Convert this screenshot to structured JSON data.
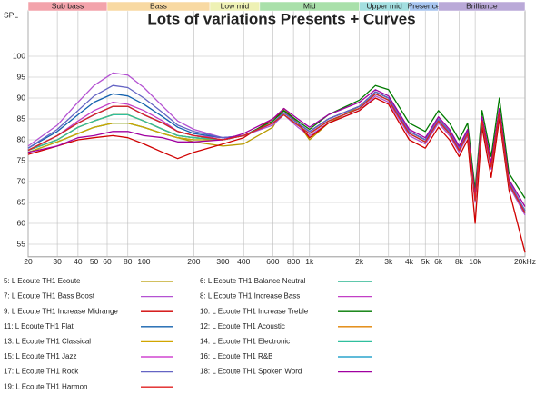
{
  "chart_data": {
    "type": "line",
    "title": "Lots of variations Presents + Curves",
    "y_label": "SPL",
    "log_x": true,
    "grid": true,
    "xlim": [
      20,
      20000
    ],
    "ylim": [
      52,
      111
    ],
    "xticks": [
      20,
      30,
      40,
      50,
      60,
      80,
      100,
      200,
      300,
      400,
      600,
      800,
      {
        "value": 1000,
        "label": "1k"
      },
      {
        "value": 2000,
        "label": "2k"
      },
      {
        "value": 3000,
        "label": "3k"
      },
      {
        "value": 4000,
        "label": "4k"
      },
      {
        "value": 5000,
        "label": "5k"
      },
      {
        "value": 6000,
        "label": "6k"
      },
      {
        "value": 8000,
        "label": "8k"
      },
      {
        "value": 10000,
        "label": "10k"
      },
      {
        "value": 20000,
        "label": "20kHz"
      }
    ],
    "yticks": [
      55,
      60,
      65,
      70,
      75,
      80,
      85,
      90,
      95,
      100
    ],
    "bands": [
      {
        "name": "Sub bass",
        "start": 20,
        "end": 60,
        "color": "#f3a3ab"
      },
      {
        "name": "Bass",
        "start": 60,
        "end": 250,
        "color": "#f8d9a2"
      },
      {
        "name": "Low mid",
        "start": 250,
        "end": 500,
        "color": "#eef1b4"
      },
      {
        "name": "Mid",
        "start": 500,
        "end": 2000,
        "color": "#a9e0aa"
      },
      {
        "name": "Upper mid",
        "start": 2000,
        "end": 4000,
        "color": "#a3dfe0"
      },
      {
        "name": "Presence",
        "start": 4000,
        "end": 6000,
        "color": "#a6c4ef"
      },
      {
        "name": "Brilliance",
        "start": 6000,
        "end": 20000,
        "color": "#baa9d8"
      }
    ],
    "x": [
      20,
      30,
      40,
      50,
      65,
      80,
      100,
      130,
      160,
      200,
      300,
      400,
      600,
      700,
      850,
      1000,
      1300,
      2000,
      2500,
      3000,
      4000,
      5000,
      6000,
      7000,
      8000,
      9000,
      10000,
      11000,
      12500,
      14000,
      16000,
      20000
    ],
    "series": [
      {
        "name": "5: L Ecoute TH1 Ecoute",
        "color": "#b89a00",
        "values": [
          77,
          79.5,
          81.5,
          83,
          84,
          84,
          83,
          81.5,
          80.5,
          79.5,
          78.5,
          79,
          83,
          87.5,
          84,
          80,
          84,
          88,
          91.5,
          90,
          82,
          80,
          85,
          82,
          78,
          82,
          66,
          85,
          74,
          87,
          70,
          63
        ]
      },
      {
        "name": "6: L Ecoute TH1 Balance Neutral",
        "color": "#00a87a",
        "values": [
          77,
          79.5,
          81.5,
          83,
          84,
          84,
          83,
          81.5,
          80.5,
          80,
          80,
          81,
          84,
          86,
          83.5,
          81.5,
          84.5,
          87.5,
          91,
          89.5,
          81.5,
          79.5,
          84.5,
          81.5,
          77.5,
          81.5,
          65.5,
          84.5,
          73.5,
          86.5,
          69.5,
          62.5
        ]
      },
      {
        "name": "7: L Ecoute TH1 Bass Boost",
        "color": "#b452d2",
        "values": [
          78.5,
          83.5,
          89,
          93,
          96,
          95.5,
          92.5,
          88,
          84.5,
          82.5,
          80.5,
          81,
          83.5,
          86,
          83,
          81,
          84,
          87,
          90.5,
          89,
          81,
          79,
          84,
          81,
          77,
          81,
          65,
          84,
          73,
          86,
          69,
          62
        ]
      },
      {
        "name": "8: L Ecoute TH1 Increase Bass",
        "color": "#c23fc6",
        "values": [
          77.5,
          81,
          84.5,
          87,
          89,
          88.5,
          87,
          84.5,
          82,
          81,
          80.5,
          81,
          84,
          86.5,
          84,
          82,
          85,
          88,
          91.5,
          90,
          82,
          80,
          85,
          82,
          78,
          82,
          66,
          85,
          74,
          87,
          70,
          63
        ]
      },
      {
        "name": "9: L Ecoute TH1 Increase Midrange",
        "color": "#d00000",
        "values": [
          76.5,
          78.5,
          80,
          80.5,
          81,
          80.5,
          79,
          77,
          75.5,
          77,
          79,
          80.5,
          85,
          87,
          84,
          80.5,
          84,
          87,
          90,
          88.5,
          80,
          78,
          83,
          80,
          76,
          80,
          60,
          83,
          71,
          85,
          68,
          53
        ]
      },
      {
        "name": "10: L Ecoute TH1 Increase Treble",
        "color": "#007a00",
        "values": [
          77.5,
          80,
          83,
          84.5,
          86,
          86,
          84.5,
          82.5,
          81,
          80.5,
          80,
          81,
          84.5,
          87,
          84.5,
          82.5,
          86,
          89.5,
          93,
          92,
          84,
          82,
          87,
          84,
          80,
          84,
          68,
          87,
          76,
          90,
          72,
          66
        ]
      },
      {
        "name": "11: L Ecoute TH1 Flat",
        "color": "#1462ae",
        "values": [
          78,
          82,
          86,
          89,
          91,
          90.5,
          88.5,
          85.5,
          83,
          81.5,
          80.5,
          81,
          84,
          86,
          83.5,
          81.5,
          84.5,
          87.5,
          91,
          89.5,
          81.5,
          79.5,
          84.5,
          81.5,
          77.5,
          81.5,
          65.5,
          84.5,
          73.5,
          86.5,
          69.5,
          62.5
        ]
      },
      {
        "name": "12: L Ecoute TH1 Acoustic",
        "color": "#e08200",
        "values": [
          77.5,
          80,
          83,
          84.5,
          86,
          86,
          84.5,
          82.5,
          81,
          80.5,
          80,
          81,
          84,
          86.5,
          84,
          82,
          85,
          88,
          91.5,
          90,
          82,
          80,
          85,
          82,
          78,
          82,
          66,
          85,
          74,
          87,
          70,
          63
        ]
      },
      {
        "name": "13: L Ecoute TH1 Classical",
        "color": "#d1a600",
        "values": [
          77,
          79.5,
          81.5,
          83,
          84,
          84,
          83,
          81.5,
          80.5,
          80,
          80,
          81,
          84,
          86.5,
          84,
          82,
          85,
          88,
          91.5,
          90,
          82,
          80,
          85,
          82,
          78,
          82,
          66,
          85,
          74,
          87,
          70,
          63
        ]
      },
      {
        "name": "14: L Ecoute TH1 Electronic",
        "color": "#2fbf9e",
        "values": [
          77.5,
          80,
          83,
          84.5,
          86,
          86,
          84.5,
          82.5,
          81,
          80.5,
          80,
          81,
          84,
          86,
          83.5,
          81.5,
          84.5,
          87.5,
          91,
          89.5,
          81.5,
          79.5,
          84.5,
          81.5,
          77.5,
          81.5,
          65.5,
          84.5,
          73.5,
          86.5,
          69.5,
          62.5
        ]
      },
      {
        "name": "15: L Ecoute TH1 Jazz",
        "color": "#c822c8",
        "values": [
          77.5,
          81,
          84,
          86,
          88,
          88,
          86,
          84,
          82,
          81,
          80,
          81,
          84,
          86.5,
          84,
          82,
          85,
          88,
          91.5,
          90,
          82,
          80,
          85,
          82,
          78,
          82,
          66,
          85,
          74,
          87,
          70,
          63
        ]
      },
      {
        "name": "16: L Ecoute TH1 R&B",
        "color": "#0092c2",
        "values": [
          77.5,
          81,
          84,
          86,
          88,
          88,
          86,
          84,
          82,
          81,
          80,
          81,
          84,
          86.5,
          84,
          82,
          85,
          88,
          91.5,
          90,
          82,
          80,
          85,
          82,
          78,
          82,
          66,
          85,
          74,
          87,
          70,
          63
        ]
      },
      {
        "name": "17: L Ecoute TH1 Rock",
        "color": "#6464c4",
        "values": [
          78,
          82.5,
          87,
          90.5,
          93,
          92.5,
          90,
          86.5,
          83.5,
          82,
          80.5,
          81,
          84,
          86.5,
          84,
          82,
          85,
          88,
          91.5,
          90,
          82,
          80,
          85,
          82,
          78,
          82,
          66,
          85,
          74,
          87,
          70,
          63
        ]
      },
      {
        "name": "18: L Ecoute TH1 Spoken Word",
        "color": "#a000a0",
        "values": [
          77,
          78.5,
          80.5,
          81,
          82,
          82,
          81,
          80.5,
          79.5,
          79.5,
          80,
          81.5,
          85,
          87.5,
          85,
          83,
          86,
          89,
          92,
          90.5,
          82.5,
          80.5,
          85.5,
          82.5,
          78.5,
          82.5,
          66.5,
          85.5,
          74.5,
          87.5,
          70.5,
          64
        ]
      },
      {
        "name": "19: L Ecoute TH1 Harmon",
        "color": "#e02020",
        "values": [
          77.5,
          81,
          84,
          86,
          88,
          88,
          86,
          84,
          82,
          81,
          80,
          81,
          84,
          86,
          83.5,
          81.5,
          84.5,
          87.5,
          91,
          89.5,
          81.5,
          79.5,
          84.5,
          81.5,
          77.5,
          81.5,
          65.5,
          84.5,
          73.5,
          86.5,
          69.5,
          62.5
        ]
      }
    ]
  }
}
